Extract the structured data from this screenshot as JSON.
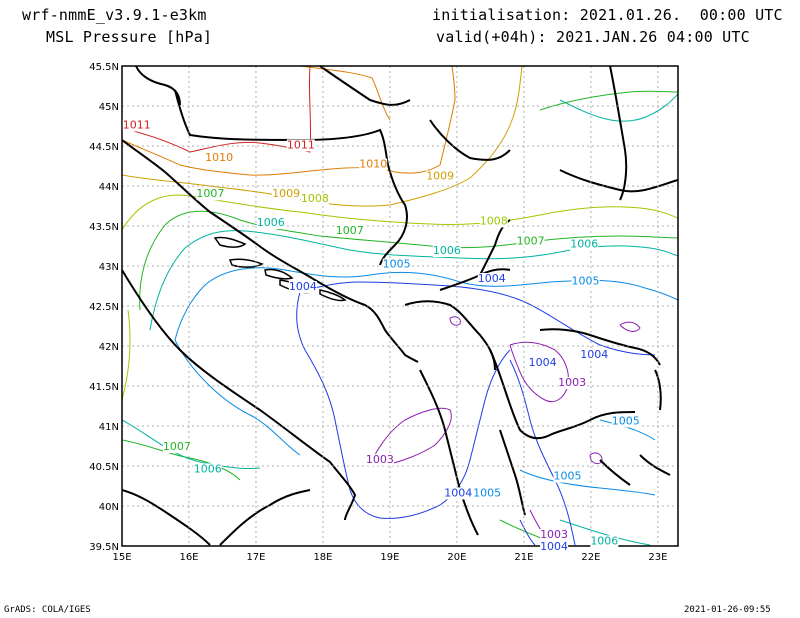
{
  "header": {
    "model": "wrf-nmmE_v3.9.1-e3km",
    "variable": "MSL Pressure [hPa]",
    "init": "initialisation: 2021.01.26.  00:00 UTC",
    "valid": "valid(+04h): 2021.JAN.26 04:00 UTC"
  },
  "footer": {
    "left": "GrADS: COLA/IGES",
    "right": "2021-01-26-09:55"
  },
  "map": {
    "lon_ticks": [
      "15E",
      "16E",
      "17E",
      "18E",
      "19E",
      "20E",
      "21E",
      "22E",
      "23E"
    ],
    "lat_ticks": [
      "45.5N",
      "45N",
      "44.5N",
      "44N",
      "43.5N",
      "43N",
      "42.5N",
      "42N",
      "41.5N",
      "41N",
      "40.5N",
      "40N",
      "39.5N"
    ],
    "lon_range": [
      15,
      23.3
    ],
    "lat_range": [
      39.5,
      45.5
    ],
    "grid": true,
    "contour_labels": [
      {
        "text": "1011",
        "lon": 15.22,
        "lat": 44.72,
        "color": "#d22020"
      },
      {
        "text": "1011",
        "lon": 17.67,
        "lat": 44.47,
        "color": "#d22020"
      },
      {
        "text": "1010",
        "lon": 16.45,
        "lat": 44.31,
        "color": "#e07b00"
      },
      {
        "text": "1010",
        "lon": 18.75,
        "lat": 44.23,
        "color": "#e07b00"
      },
      {
        "text": "1009",
        "lon": 17.45,
        "lat": 43.86,
        "color": "#d0a000"
      },
      {
        "text": "1009",
        "lon": 19.75,
        "lat": 44.08,
        "color": "#d0a000"
      },
      {
        "text": "1008",
        "lon": 17.88,
        "lat": 43.8,
        "color": "#a0c800"
      },
      {
        "text": "1008",
        "lon": 20.55,
        "lat": 43.52,
        "color": "#a0c800"
      },
      {
        "text": "1007",
        "lon": 16.32,
        "lat": 43.86,
        "color": "#22b422"
      },
      {
        "text": "1007",
        "lon": 18.4,
        "lat": 43.4,
        "color": "#22b422"
      },
      {
        "text": "1007",
        "lon": 21.1,
        "lat": 43.27,
        "color": "#22b422"
      },
      {
        "text": "1007",
        "lon": 15.82,
        "lat": 40.7,
        "color": "#22b422"
      },
      {
        "text": "1006",
        "lon": 17.22,
        "lat": 43.5,
        "color": "#00b4a0"
      },
      {
        "text": "1006",
        "lon": 19.85,
        "lat": 43.15,
        "color": "#00b4a0"
      },
      {
        "text": "1006",
        "lon": 21.9,
        "lat": 43.23,
        "color": "#00b4a0"
      },
      {
        "text": "1006",
        "lon": 16.28,
        "lat": 40.42,
        "color": "#00b4a0"
      },
      {
        "text": "1006",
        "lon": 22.2,
        "lat": 39.52,
        "color": "#00b4a0"
      },
      {
        "text": "1005",
        "lon": 19.1,
        "lat": 42.98,
        "color": "#0a8ce6"
      },
      {
        "text": "1005",
        "lon": 21.92,
        "lat": 42.77,
        "color": "#0a8ce6"
      },
      {
        "text": "1005",
        "lon": 22.52,
        "lat": 41.02,
        "color": "#0a8ce6"
      },
      {
        "text": "1005",
        "lon": 21.65,
        "lat": 40.33,
        "color": "#0a8ce6"
      },
      {
        "text": "1005",
        "lon": 20.45,
        "lat": 40.12,
        "color": "#0a8ce6"
      },
      {
        "text": "1004",
        "lon": 17.7,
        "lat": 42.7,
        "color": "#1e3ce6"
      },
      {
        "text": "1004",
        "lon": 20.52,
        "lat": 42.8,
        "color": "#1e3ce6"
      },
      {
        "text": "1004",
        "lon": 22.05,
        "lat": 41.85,
        "color": "#1e3ce6"
      },
      {
        "text": "1004",
        "lon": 21.28,
        "lat": 41.75,
        "color": "#1e3ce6"
      },
      {
        "text": "1004",
        "lon": 20.02,
        "lat": 40.12,
        "color": "#1e3ce6"
      },
      {
        "text": "1004",
        "lon": 21.45,
        "lat": 39.45,
        "color": "#1e3ce6"
      },
      {
        "text": "1003",
        "lon": 21.72,
        "lat": 41.5,
        "color": "#8c1eb4"
      },
      {
        "text": "1003",
        "lon": 18.85,
        "lat": 40.54,
        "color": "#8c1eb4"
      },
      {
        "text": "1003",
        "lon": 21.45,
        "lat": 39.6,
        "color": "#8c1eb4"
      }
    ]
  }
}
